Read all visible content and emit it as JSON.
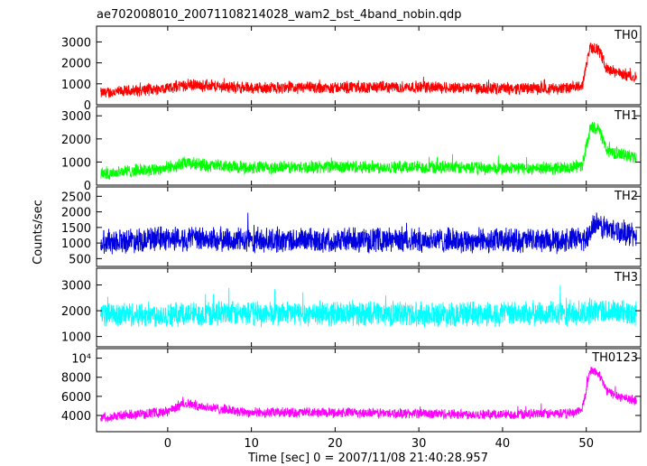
{
  "title": "ae702008010_20071108214028_wam2_bst_4band_nobin.qdp",
  "ylabel": "Counts/sec",
  "xlabel": "Time [sec] 0 = 2007/11/08 21:40:28.957",
  "x_ticks": [
    0,
    10,
    20,
    30,
    40,
    50
  ],
  "colors": {
    "TH0": "#ff0000",
    "TH1": "#00ff00",
    "TH2": "#0000e0",
    "TH3": "#00ffff",
    "TH0123": "#ff00ff",
    "axis": "#000000"
  },
  "chart_data": [
    {
      "type": "line",
      "name": "TH0",
      "label": "TH0",
      "xlim": [
        -8.5,
        56.5
      ],
      "ylim": [
        0,
        3750
      ],
      "yticks": [
        {
          "v": 0,
          "label": "0"
        },
        {
          "v": 1000,
          "label": "1000"
        },
        {
          "v": 2000,
          "label": "2000"
        },
        {
          "v": 3000,
          "label": "3000"
        }
      ],
      "base": [
        [
          -8,
          550
        ],
        [
          0,
          800
        ],
        [
          2,
          950
        ],
        [
          5,
          900
        ],
        [
          10,
          800
        ],
        [
          20,
          820
        ],
        [
          30,
          850
        ],
        [
          40,
          780
        ],
        [
          48,
          780
        ],
        [
          49.5,
          900
        ],
        [
          50.5,
          2800
        ],
        [
          51.5,
          2600
        ],
        [
          52.5,
          1700
        ],
        [
          54,
          1500
        ],
        [
          56,
          1300
        ]
      ],
      "noise": 320
    },
    {
      "type": "line",
      "name": "TH1",
      "label": "TH1",
      "xlim": [
        -8.5,
        56.5
      ],
      "ylim": [
        0,
        3400
      ],
      "yticks": [
        {
          "v": 0,
          "label": "0"
        },
        {
          "v": 1000,
          "label": "1000"
        },
        {
          "v": 2000,
          "label": "2000"
        },
        {
          "v": 3000,
          "label": "3000"
        }
      ],
      "base": [
        [
          -8,
          500
        ],
        [
          0,
          750
        ],
        [
          2,
          950
        ],
        [
          5,
          850
        ],
        [
          10,
          750
        ],
        [
          20,
          800
        ],
        [
          30,
          780
        ],
        [
          40,
          720
        ],
        [
          48,
          750
        ],
        [
          49.5,
          850
        ],
        [
          50.5,
          2500
        ],
        [
          51.5,
          2400
        ],
        [
          52.5,
          1500
        ],
        [
          54,
          1350
        ],
        [
          56,
          1200
        ]
      ],
      "noise": 320
    },
    {
      "type": "line",
      "name": "TH2",
      "label": "TH2",
      "xlim": [
        -8.5,
        56.5
      ],
      "ylim": [
        250,
        2800
      ],
      "yticks": [
        {
          "v": 500,
          "label": "500"
        },
        {
          "v": 1000,
          "label": "1000"
        },
        {
          "v": 1500,
          "label": "1500"
        },
        {
          "v": 2000,
          "label": "2000"
        },
        {
          "v": 2500,
          "label": "2500"
        }
      ],
      "base": [
        [
          -8,
          1050
        ],
        [
          0,
          1150
        ],
        [
          10,
          1080
        ],
        [
          20,
          1100
        ],
        [
          30,
          1100
        ],
        [
          40,
          1080
        ],
        [
          48,
          1080
        ],
        [
          50,
          1150
        ],
        [
          51,
          1600
        ],
        [
          52,
          1500
        ],
        [
          56,
          1250
        ]
      ],
      "noise": 450
    },
    {
      "type": "line",
      "name": "TH3",
      "label": "TH3",
      "xlim": [
        -8.5,
        56.5
      ],
      "ylim": [
        600,
        3650
      ],
      "yticks": [
        {
          "v": 1000,
          "label": "1000"
        },
        {
          "v": 2000,
          "label": "2000"
        },
        {
          "v": 3000,
          "label": "3000"
        }
      ],
      "base": [
        [
          -8,
          1850
        ],
        [
          10,
          1880
        ],
        [
          20,
          1900
        ],
        [
          30,
          1880
        ],
        [
          40,
          1870
        ],
        [
          50,
          1900
        ],
        [
          51,
          2050
        ],
        [
          53,
          1950
        ],
        [
          56,
          1900
        ]
      ],
      "noise": 550
    },
    {
      "type": "line",
      "name": "TH0123",
      "label": "TH0123",
      "xlim": [
        -8.5,
        56.5
      ],
      "ylim": [
        2300,
        11000
      ],
      "yticks": [
        {
          "v": 4000,
          "label": "4000"
        },
        {
          "v": 6000,
          "label": "6000"
        },
        {
          "v": 8000,
          "label": "8000"
        },
        {
          "v": 10000,
          "label": "10⁴"
        }
      ],
      "base": [
        [
          -8,
          3800
        ],
        [
          0,
          4400
        ],
        [
          2,
          5300
        ],
        [
          5,
          4800
        ],
        [
          10,
          4300
        ],
        [
          20,
          4300
        ],
        [
          30,
          4200
        ],
        [
          40,
          4100
        ],
        [
          48,
          4200
        ],
        [
          49.5,
          4600
        ],
        [
          50.5,
          8800
        ],
        [
          51.5,
          8300
        ],
        [
          52.5,
          6500
        ],
        [
          54,
          6000
        ],
        [
          56,
          5500
        ]
      ],
      "noise": 600
    }
  ]
}
